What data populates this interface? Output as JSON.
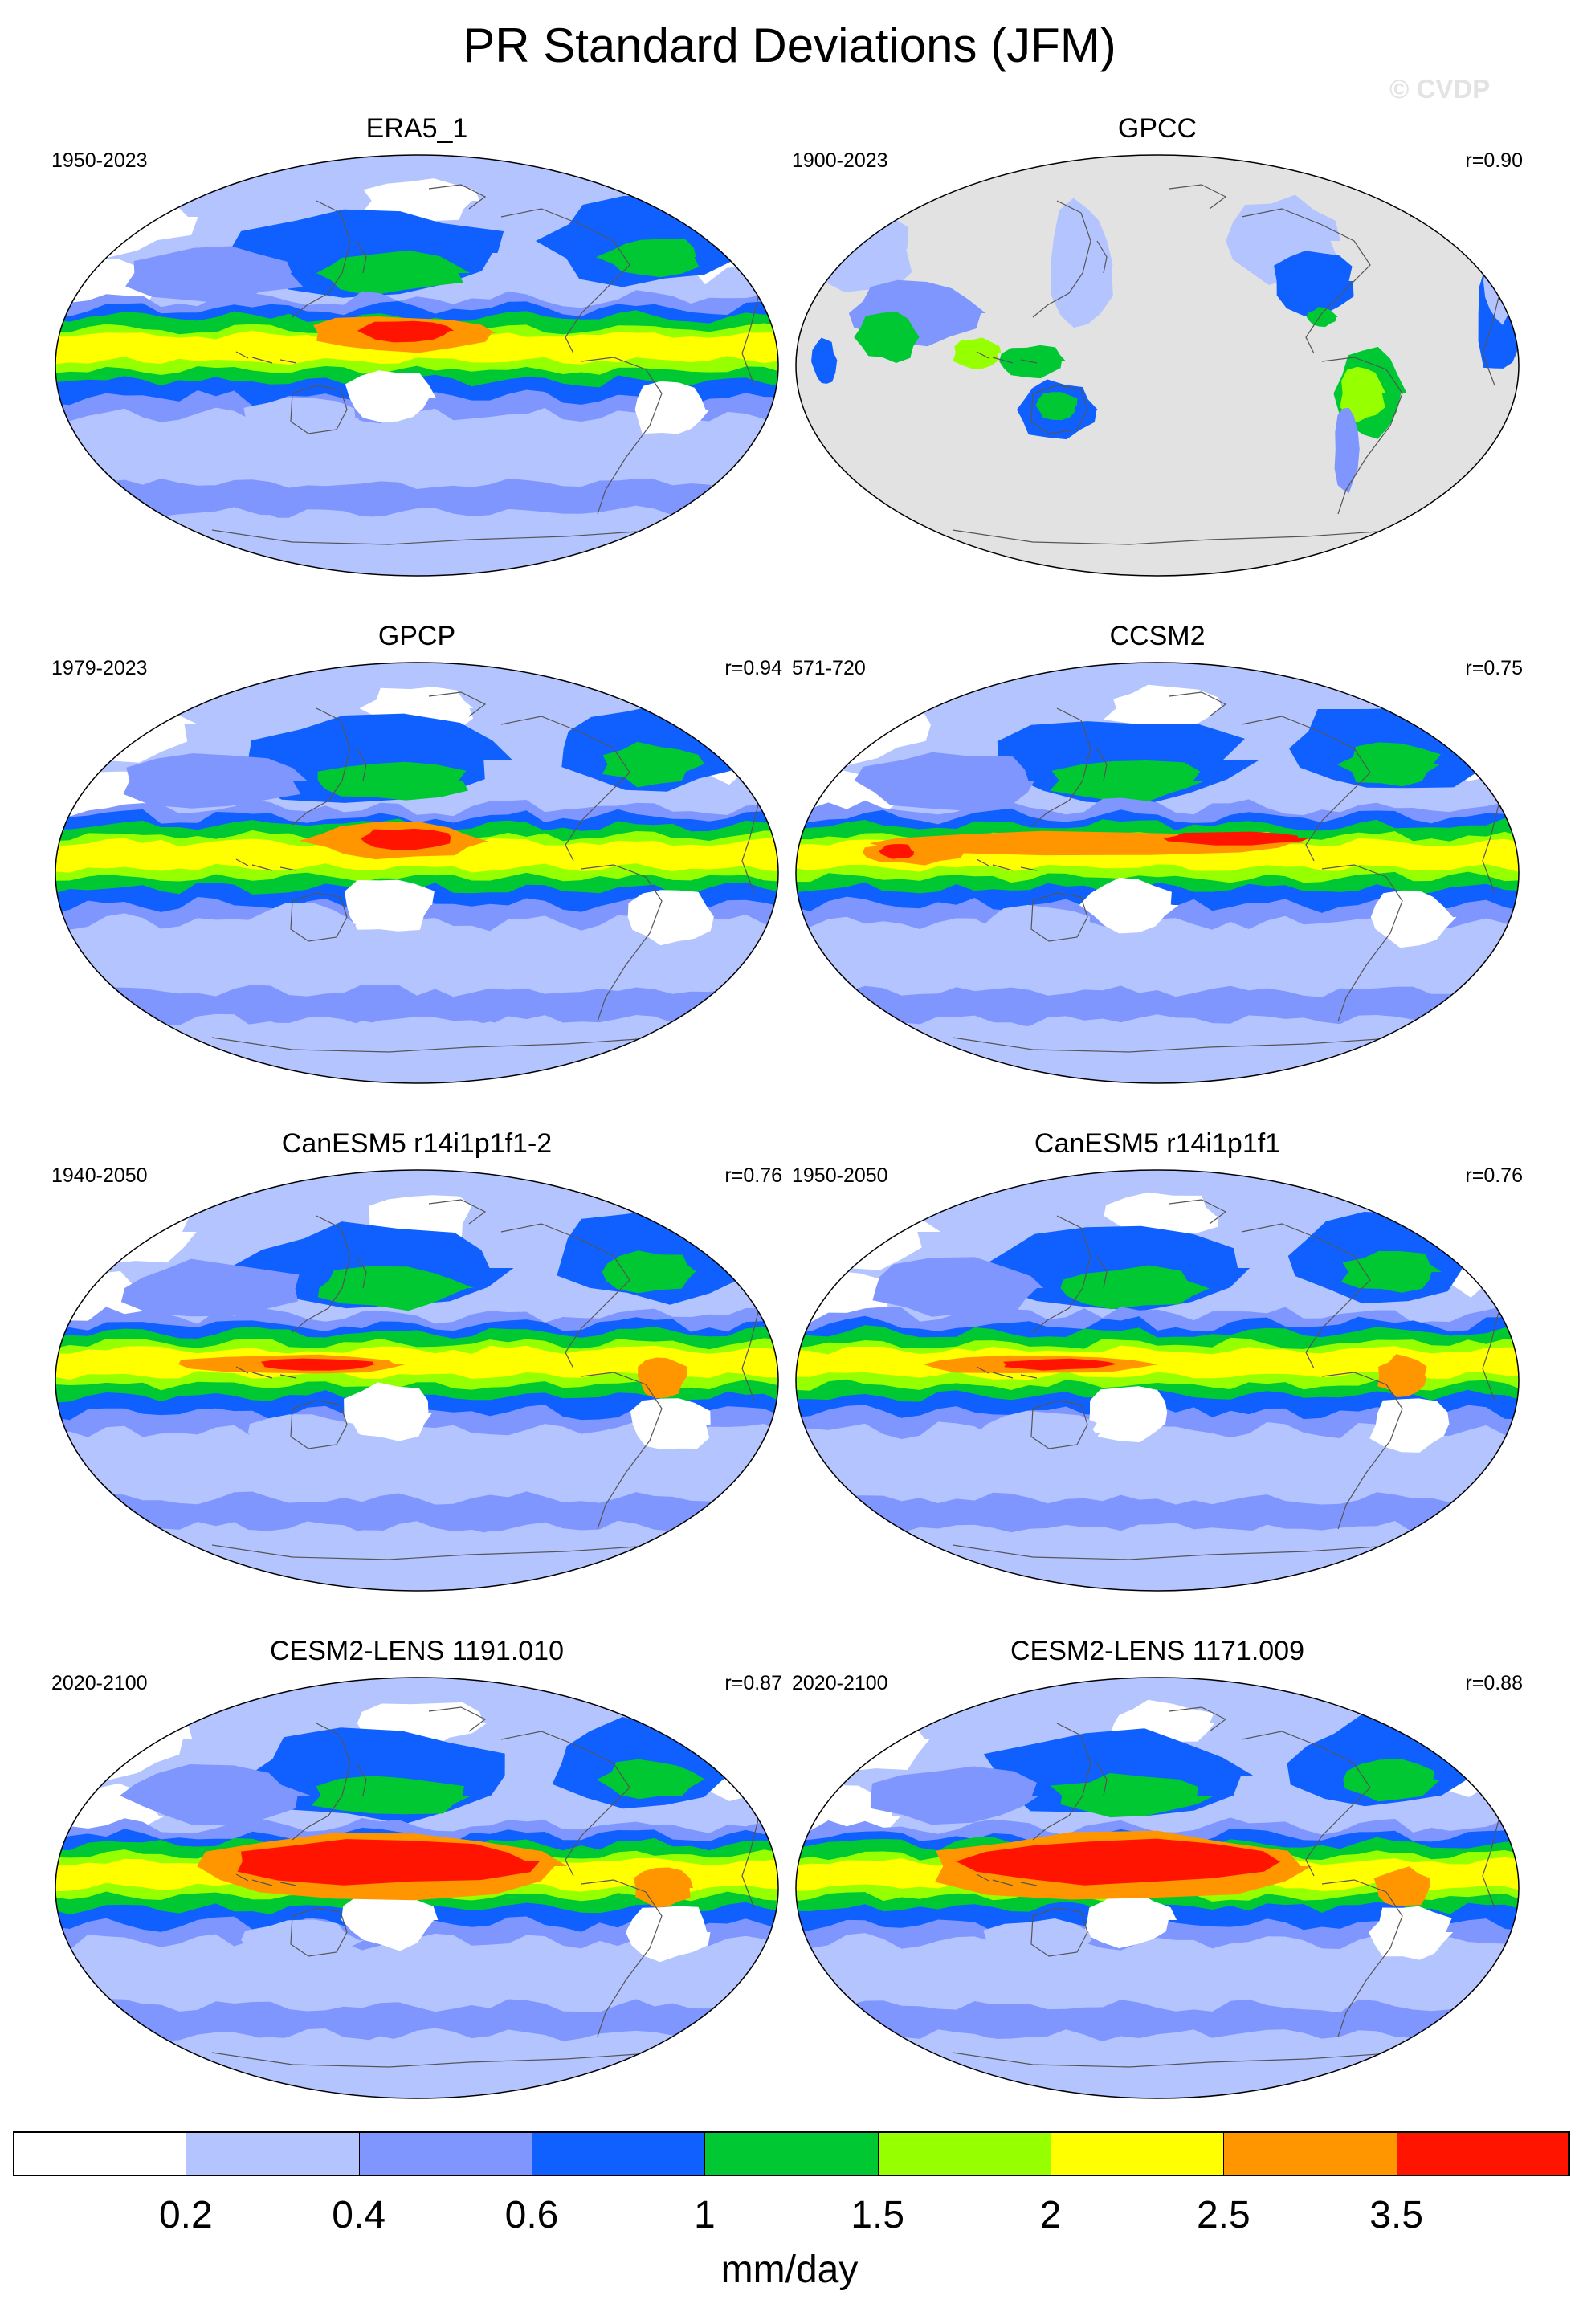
{
  "title": "PR Standard Deviations (JFM)",
  "watermark": "© CVDP",
  "panels": [
    {
      "title": "ERA5_1",
      "years": "1950-2023",
      "r": "",
      "pattern": "obs_era5"
    },
    {
      "title": "GPCC",
      "years": "1900-2023",
      "r": "r=0.90",
      "pattern": "land_only"
    },
    {
      "title": "GPCP",
      "years": "1979-2023",
      "r": "r=0.94",
      "pattern": "obs_gpcp"
    },
    {
      "title": "CCSM2",
      "years": "571-720",
      "r": "r=0.75",
      "pattern": "model_ccsm2"
    },
    {
      "title": "CanESM5 r14i1p1f1-2",
      "years": "1940-2050",
      "r": "r=0.76",
      "pattern": "model_canesm"
    },
    {
      "title": "CanESM5 r14i1p1f1",
      "years": "1950-2050",
      "r": "r=0.76",
      "pattern": "model_canesm"
    },
    {
      "title": "CESM2-LENS 1191.010",
      "years": "2020-2100",
      "r": "r=0.87",
      "pattern": "model_cesm2"
    },
    {
      "title": "CESM2-LENS 1171.009",
      "years": "2020-2100",
      "r": "r=0.88",
      "pattern": "model_cesm2"
    }
  ],
  "colorbar": {
    "units": "mm/day",
    "tick_labels": [
      "0.2",
      "0.4",
      "0.6",
      "1",
      "1.5",
      "2",
      "2.5",
      "3.5"
    ],
    "colors": [
      "#ffffff",
      "#b4c4ff",
      "#7f96ff",
      "#0f60ff",
      "#00c832",
      "#96ff00",
      "#ffff00",
      "#ff9600",
      "#ff1400"
    ]
  },
  "colors": {
    "missing": "#e2e2e2",
    "coastline": "#555555"
  }
}
